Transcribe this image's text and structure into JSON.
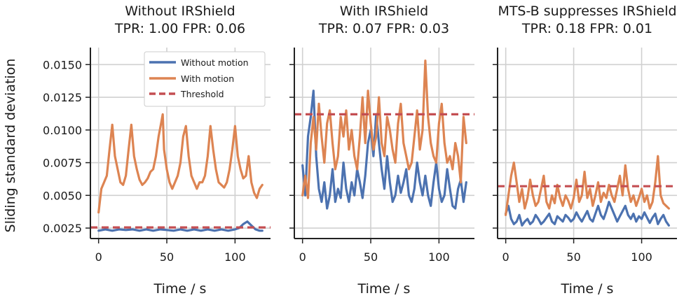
{
  "chart_data": {
    "type": "line",
    "ylabel": "Sliding standard deviation",
    "ylim": [
      0.0017,
      0.0163
    ],
    "yticks": [
      0.0025,
      0.005,
      0.0075,
      0.01,
      0.0125,
      0.015
    ],
    "ytick_labels": [
      "0.0025",
      "0.0050",
      "0.0075",
      "0.0100",
      "0.0125",
      "0.0150"
    ],
    "xlim": [
      -6,
      126
    ],
    "xticks": [
      0,
      50,
      100
    ],
    "xtick_labels": [
      "0",
      "50",
      "100"
    ],
    "colors": {
      "without": "#4c72b0",
      "with": "#dd8452",
      "threshold": "#c44e52"
    },
    "legend": {
      "position": "top-right of first panel",
      "entries": [
        "Without motion",
        "With motion",
        "Threshold"
      ]
    },
    "panels": [
      {
        "title_line1": "Without IRShield",
        "title_line2": "TPR: 1.00 FPR: 0.06",
        "xlabel": "Time / s",
        "threshold": 0.00255,
        "series": [
          {
            "name": "Without motion",
            "x": [
              0,
              5,
              10,
              15,
              20,
              25,
              30,
              35,
              40,
              45,
              50,
              55,
              60,
              65,
              70,
              75,
              80,
              85,
              90,
              95,
              100,
              103,
              106,
              109,
              112,
              115,
              118,
              120
            ],
            "values": [
              0.0023,
              0.0024,
              0.0023,
              0.0024,
              0.00235,
              0.0024,
              0.0023,
              0.0024,
              0.0023,
              0.0024,
              0.00235,
              0.0023,
              0.0024,
              0.0023,
              0.0024,
              0.0023,
              0.0024,
              0.0023,
              0.0024,
              0.0023,
              0.0024,
              0.0025,
              0.0028,
              0.003,
              0.0027,
              0.0024,
              0.0023,
              0.0023
            ]
          },
          {
            "name": "With motion",
            "x": [
              0,
              2,
              4,
              6,
              8,
              10,
              12,
              14,
              16,
              18,
              20,
              22,
              24,
              26,
              28,
              30,
              32,
              34,
              36,
              38,
              40,
              42,
              44,
              46,
              47,
              48,
              50,
              52,
              54,
              56,
              58,
              60,
              62,
              64,
              66,
              68,
              70,
              72,
              74,
              76,
              78,
              80,
              82,
              84,
              86,
              88,
              90,
              92,
              94,
              96,
              98,
              100,
              102,
              104,
              106,
              108,
              110,
              112,
              114,
              116,
              118,
              120
            ],
            "values": [
              0.0037,
              0.0055,
              0.006,
              0.0065,
              0.0085,
              0.0104,
              0.008,
              0.007,
              0.006,
              0.0058,
              0.0065,
              0.0085,
              0.0104,
              0.008,
              0.007,
              0.0062,
              0.0058,
              0.006,
              0.0063,
              0.0068,
              0.007,
              0.008,
              0.0095,
              0.0106,
              0.0112,
              0.0085,
              0.007,
              0.006,
              0.0055,
              0.006,
              0.0065,
              0.0075,
              0.0095,
              0.0103,
              0.008,
              0.0065,
              0.006,
              0.0055,
              0.006,
              0.006,
              0.0065,
              0.008,
              0.0103,
              0.0085,
              0.007,
              0.006,
              0.0058,
              0.0056,
              0.006,
              0.007,
              0.0085,
              0.0103,
              0.008,
              0.007,
              0.0063,
              0.0065,
              0.008,
              0.006,
              0.0052,
              0.0048,
              0.0055,
              0.0058
            ]
          }
        ]
      },
      {
        "title_line1": "With IRShield",
        "title_line2": "TPR: 0.07 FPR: 0.03",
        "xlabel": "Time / s",
        "threshold": 0.0112,
        "series": [
          {
            "name": "Without motion",
            "x": [
              0,
              2,
              4,
              6,
              8,
              10,
              12,
              14,
              16,
              18,
              20,
              22,
              24,
              26,
              28,
              30,
              32,
              34,
              36,
              38,
              40,
              42,
              44,
              46,
              48,
              50,
              52,
              54,
              56,
              58,
              60,
              62,
              64,
              66,
              68,
              70,
              72,
              74,
              76,
              78,
              80,
              82,
              84,
              86,
              88,
              90,
              92,
              94,
              96,
              98,
              100,
              102,
              104,
              106,
              108,
              110,
              112,
              114,
              116,
              118,
              120
            ],
            "values": [
              0.0073,
              0.005,
              0.0095,
              0.011,
              0.013,
              0.008,
              0.0055,
              0.0045,
              0.006,
              0.004,
              0.005,
              0.007,
              0.0045,
              0.0055,
              0.0048,
              0.0075,
              0.0055,
              0.0045,
              0.006,
              0.005,
              0.007,
              0.006,
              0.0048,
              0.0065,
              0.009,
              0.01,
              0.008,
              0.0112,
              0.009,
              0.007,
              0.0055,
              0.008,
              0.006,
              0.0045,
              0.005,
              0.0065,
              0.0052,
              0.006,
              0.007,
              0.005,
              0.0045,
              0.0055,
              0.0075,
              0.006,
              0.005,
              0.0065,
              0.005,
              0.0042,
              0.006,
              0.0075,
              0.0055,
              0.0045,
              0.005,
              0.007,
              0.0055,
              0.0042,
              0.004,
              0.0055,
              0.0062,
              0.0045,
              0.006
            ]
          },
          {
            "name": "With motion",
            "x": [
              0,
              2,
              4,
              6,
              8,
              10,
              12,
              14,
              16,
              18,
              20,
              22,
              24,
              26,
              28,
              30,
              32,
              34,
              36,
              38,
              40,
              42,
              44,
              46,
              48,
              50,
              52,
              54,
              56,
              58,
              60,
              62,
              64,
              66,
              68,
              70,
              72,
              74,
              76,
              78,
              80,
              82,
              84,
              86,
              88,
              90,
              92,
              94,
              96,
              98,
              100,
              102,
              104,
              106,
              108,
              110,
              112,
              114,
              116,
              118,
              120
            ],
            "values": [
              0.005,
              0.0065,
              0.0048,
              0.009,
              0.011,
              0.0085,
              0.012,
              0.0095,
              0.0075,
              0.0105,
              0.0115,
              0.009,
              0.007,
              0.008,
              0.011,
              0.0095,
              0.0115,
              0.0085,
              0.01,
              0.008,
              0.007,
              0.0095,
              0.0125,
              0.009,
              0.013,
              0.0105,
              0.0085,
              0.0095,
              0.0125,
              0.009,
              0.008,
              0.011,
              0.01,
              0.0085,
              0.0075,
              0.0105,
              0.012,
              0.009,
              0.008,
              0.007,
              0.0075,
              0.0095,
              0.0115,
              0.0085,
              0.01,
              0.0153,
              0.011,
              0.009,
              0.008,
              0.0075,
              0.0105,
              0.012,
              0.009,
              0.0075,
              0.008,
              0.007,
              0.009,
              0.008,
              0.006,
              0.011,
              0.009
            ]
          }
        ]
      },
      {
        "title_line1": "MTS-B suppresses IRShield",
        "title_line2": "TPR: 0.18 FPR: 0.01",
        "xlabel": "Time / s",
        "threshold": 0.0057,
        "series": [
          {
            "name": "Without motion",
            "x": [
              0,
              2,
              4,
              6,
              8,
              10,
              12,
              14,
              16,
              18,
              20,
              22,
              24,
              26,
              28,
              30,
              32,
              34,
              36,
              38,
              40,
              42,
              44,
              46,
              48,
              50,
              52,
              54,
              56,
              58,
              60,
              62,
              64,
              66,
              68,
              70,
              72,
              74,
              76,
              78,
              80,
              82,
              84,
              86,
              88,
              90,
              92,
              94,
              96,
              98,
              100,
              102,
              104,
              106,
              108,
              110,
              112,
              114,
              116,
              118,
              120
            ],
            "values": [
              0.0036,
              0.0042,
              0.0032,
              0.0028,
              0.003,
              0.0035,
              0.0027,
              0.003,
              0.0032,
              0.0028,
              0.003,
              0.0035,
              0.0032,
              0.0028,
              0.003,
              0.0033,
              0.0036,
              0.003,
              0.0028,
              0.0034,
              0.0032,
              0.003,
              0.0035,
              0.0033,
              0.003,
              0.0032,
              0.0037,
              0.0033,
              0.003,
              0.0034,
              0.0038,
              0.0032,
              0.003,
              0.0036,
              0.0042,
              0.0035,
              0.0032,
              0.0038,
              0.0045,
              0.004,
              0.0035,
              0.003,
              0.0034,
              0.0038,
              0.0042,
              0.0035,
              0.0032,
              0.0036,
              0.003,
              0.0034,
              0.0032,
              0.0037,
              0.0033,
              0.0029,
              0.0033,
              0.0036,
              0.0028,
              0.0032,
              0.0035,
              0.003,
              0.0027
            ]
          },
          {
            "name": "With motion",
            "x": [
              0,
              2,
              4,
              6,
              8,
              10,
              12,
              14,
              16,
              18,
              20,
              22,
              24,
              26,
              28,
              30,
              32,
              34,
              36,
              38,
              40,
              42,
              44,
              46,
              48,
              50,
              52,
              54,
              56,
              58,
              60,
              62,
              64,
              66,
              68,
              70,
              72,
              74,
              76,
              78,
              80,
              82,
              84,
              86,
              88,
              90,
              92,
              94,
              96,
              98,
              100,
              102,
              104,
              106,
              108,
              110,
              112,
              114,
              116,
              118,
              120
            ],
            "values": [
              0.0035,
              0.005,
              0.0065,
              0.0075,
              0.006,
              0.0045,
              0.0055,
              0.004,
              0.0048,
              0.0062,
              0.005,
              0.0042,
              0.0045,
              0.0055,
              0.0065,
              0.0045,
              0.004,
              0.005,
              0.0044,
              0.0058,
              0.0048,
              0.0042,
              0.005,
              0.0046,
              0.004,
              0.0048,
              0.0062,
              0.0045,
              0.005,
              0.0068,
              0.0048,
              0.0055,
              0.0042,
              0.005,
              0.006,
              0.0045,
              0.0052,
              0.0048,
              0.0058,
              0.005,
              0.0045,
              0.0055,
              0.0065,
              0.005,
              0.0073,
              0.0055,
              0.0045,
              0.005,
              0.0042,
              0.0048,
              0.0055,
              0.0045,
              0.005,
              0.004,
              0.0045,
              0.006,
              0.008,
              0.005,
              0.0044,
              0.0042,
              0.004
            ]
          }
        ]
      }
    ]
  }
}
